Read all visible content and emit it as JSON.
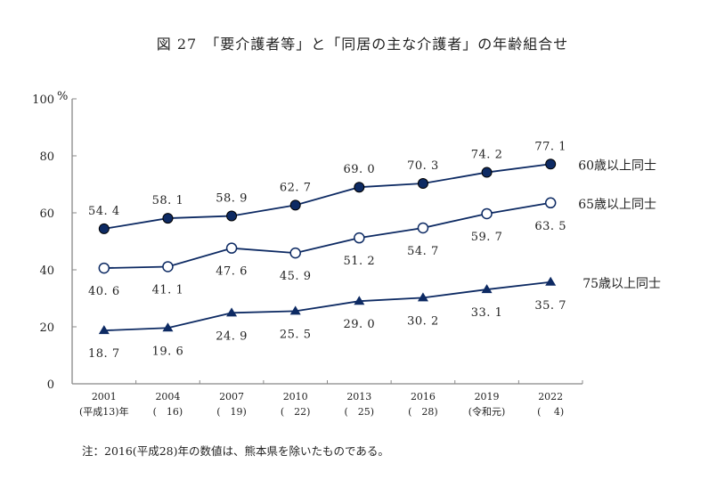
{
  "title": "図 27　「要介護者等」と「同居の主な介護者」の年齢組合せ",
  "note": "注：2016(平成28)年の数値は、熊本県を除いたものである。",
  "colors": {
    "line": "#0d2a63",
    "axis": "#888888",
    "marker_fill": "#0d2a63"
  },
  "chart_data": {
    "type": "line",
    "title": "図 27　「要介護者等」と「同居の主な介護者」の年齢組合せ",
    "xlabel": "",
    "ylabel": "%",
    "ylim": [
      0,
      100
    ],
    "yticks": [
      0,
      20,
      40,
      60,
      80,
      100
    ],
    "ytick_labels": [
      "0",
      "20",
      "40",
      "60",
      "80",
      "100"
    ],
    "y_unit": "%",
    "grid": false,
    "legend": "right-inline",
    "categories": [
      "2001",
      "2004",
      "2007",
      "2010",
      "2013",
      "2016",
      "2019",
      "2022"
    ],
    "category_sublabels": [
      "(平成13)年",
      "(　16)",
      "(　19)",
      "(　22)",
      "(　25)",
      "(　28)",
      "(令和元)",
      "(　 4)"
    ],
    "series": [
      {
        "name": "60歳以上同士",
        "marker": "filled-circle",
        "label_pos": "above",
        "values": [
          54.4,
          58.1,
          58.9,
          62.7,
          69.0,
          70.3,
          74.2,
          77.1
        ],
        "labels": [
          "54. 4",
          "58. 1",
          "58. 9",
          "62. 7",
          "69. 0",
          "70. 3",
          "74. 2",
          "77. 1"
        ]
      },
      {
        "name": "65歳以上同士",
        "marker": "open-circle",
        "label_pos": "below",
        "values": [
          40.6,
          41.1,
          47.6,
          45.9,
          51.2,
          54.7,
          59.7,
          63.5
        ],
        "labels": [
          "40. 6",
          "41. 1",
          "47. 6",
          "45. 9",
          "51. 2",
          "54. 7",
          "59. 7",
          "63. 5"
        ]
      },
      {
        "name": "75歳以上同士",
        "marker": "filled-triangle",
        "label_pos": "below",
        "values": [
          18.7,
          19.6,
          24.9,
          25.5,
          29.0,
          30.2,
          33.1,
          35.7
        ],
        "labels": [
          "18. 7",
          "19. 6",
          "24. 9",
          "25. 5",
          "29. 0",
          "30. 2",
          "33. 1",
          "35. 7"
        ]
      }
    ]
  }
}
